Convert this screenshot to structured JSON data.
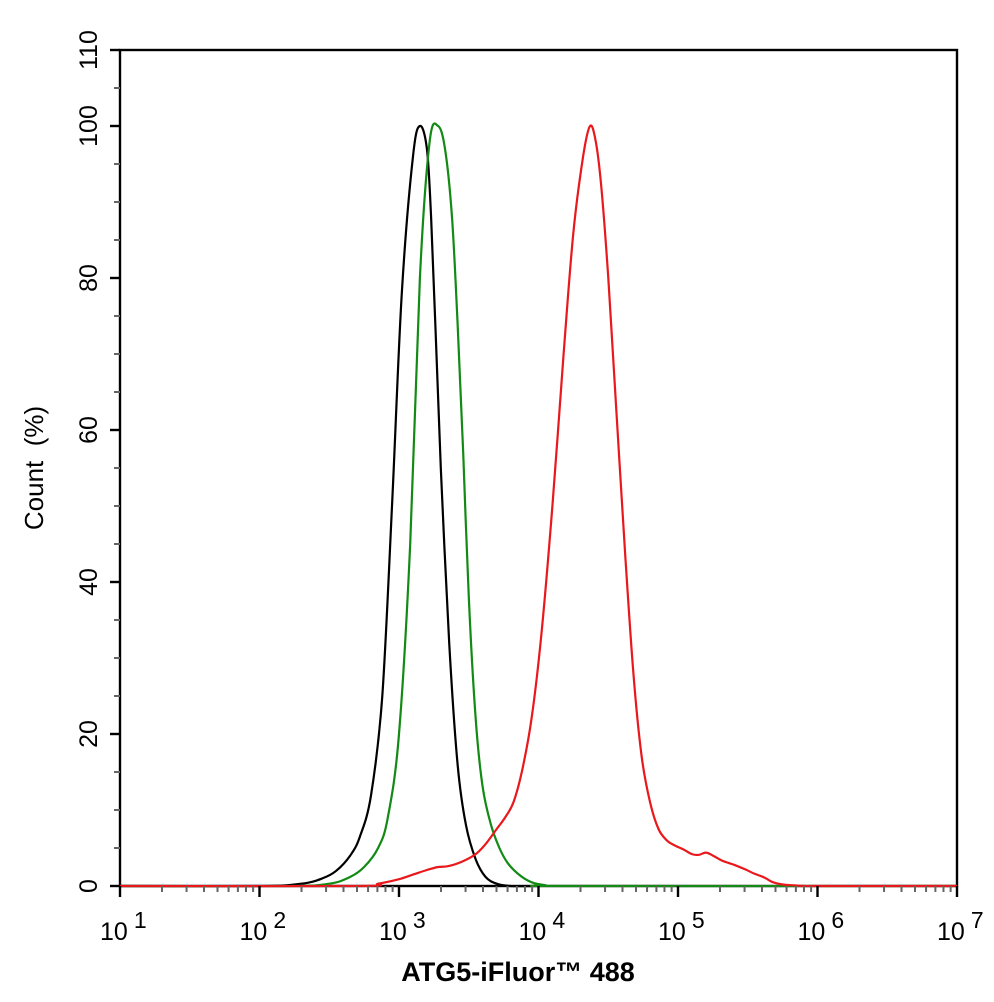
{
  "chart_data": {
    "type": "line",
    "title": "",
    "xlabel": "ATG5-iFluor™ 488",
    "ylabel": "Count  (%)",
    "xscale": "log",
    "xlim": [
      10,
      10000000
    ],
    "ylim": [
      0,
      110
    ],
    "grid": false,
    "legend": null,
    "x_ticks": [
      {
        "value": 10,
        "base": "10",
        "exp": "1"
      },
      {
        "value": 100,
        "base": "10",
        "exp": "2"
      },
      {
        "value": 1000,
        "base": "10",
        "exp": "3"
      },
      {
        "value": 10000,
        "base": "10",
        "exp": "4"
      },
      {
        "value": 100000,
        "base": "10",
        "exp": "5"
      },
      {
        "value": 1000000,
        "base": "10",
        "exp": "6"
      },
      {
        "value": 10000000,
        "base": "10",
        "exp": "7"
      }
    ],
    "y_ticks": [
      0,
      20,
      40,
      60,
      80,
      100,
      110
    ],
    "series": [
      {
        "name": "black",
        "color": "#000000",
        "log10_x": [
          1.0,
          2.0,
          2.3,
          2.45,
          2.55,
          2.65,
          2.72,
          2.8,
          2.88,
          2.95,
          3.02,
          3.1,
          3.15,
          3.2,
          3.23,
          3.26,
          3.3,
          3.36,
          3.42,
          3.48,
          3.55,
          3.62,
          3.7,
          3.8,
          4.0
        ],
        "y": [
          0,
          0,
          0.3,
          1.0,
          2.0,
          4.0,
          6.5,
          12,
          25,
          50,
          78,
          96,
          100,
          97,
          88,
          74,
          55,
          32,
          16,
          8,
          3.5,
          1.2,
          0.3,
          0,
          0
        ]
      },
      {
        "name": "green",
        "color": "#138a13",
        "log10_x": [
          1.0,
          2.2,
          2.5,
          2.65,
          2.75,
          2.85,
          2.92,
          3.0,
          3.08,
          3.15,
          3.22,
          3.28,
          3.33,
          3.38,
          3.42,
          3.46,
          3.5,
          3.55,
          3.6,
          3.66,
          3.72,
          3.78,
          3.86,
          3.95,
          4.05,
          4.2,
          7.0
        ],
        "y": [
          0,
          0,
          0.3,
          1.2,
          2.5,
          5.0,
          9,
          20,
          45,
          80,
          98,
          100,
          97,
          88,
          74,
          57,
          38,
          22,
          13,
          8,
          5,
          3,
          1.5,
          0.5,
          0.1,
          0,
          0
        ]
      },
      {
        "name": "red",
        "color": "#e8181c",
        "log10_x": [
          1.0,
          2.7,
          2.85,
          3.0,
          3.1,
          3.2,
          3.28,
          3.35,
          3.45,
          3.55,
          3.62,
          3.7,
          3.76,
          3.82,
          3.88,
          3.95,
          4.02,
          4.1,
          4.18,
          4.25,
          4.32,
          4.37,
          4.41,
          4.45,
          4.5,
          4.56,
          4.62,
          4.68,
          4.74,
          4.8,
          4.86,
          4.92,
          4.98,
          5.04,
          5.1,
          5.15,
          5.2,
          5.25,
          5.32,
          5.4,
          5.48,
          5.55,
          5.62,
          5.68,
          5.75,
          5.82,
          5.9,
          6.0,
          6.2,
          7.0
        ],
        "y": [
          0,
          0,
          0.3,
          0.9,
          1.5,
          2.1,
          2.5,
          2.6,
          3.2,
          4.2,
          5.5,
          7.5,
          9,
          11,
          15,
          22,
          33,
          50,
          70,
          86,
          96,
          100,
          98,
          92,
          80,
          62,
          44,
          28,
          17,
          11,
          7.5,
          6,
          5.3,
          4.8,
          4.2,
          4.1,
          4.4,
          4.0,
          3.3,
          2.8,
          2.2,
          1.6,
          1.1,
          0.5,
          0.2,
          0.1,
          0,
          0,
          0,
          0
        ]
      }
    ]
  }
}
